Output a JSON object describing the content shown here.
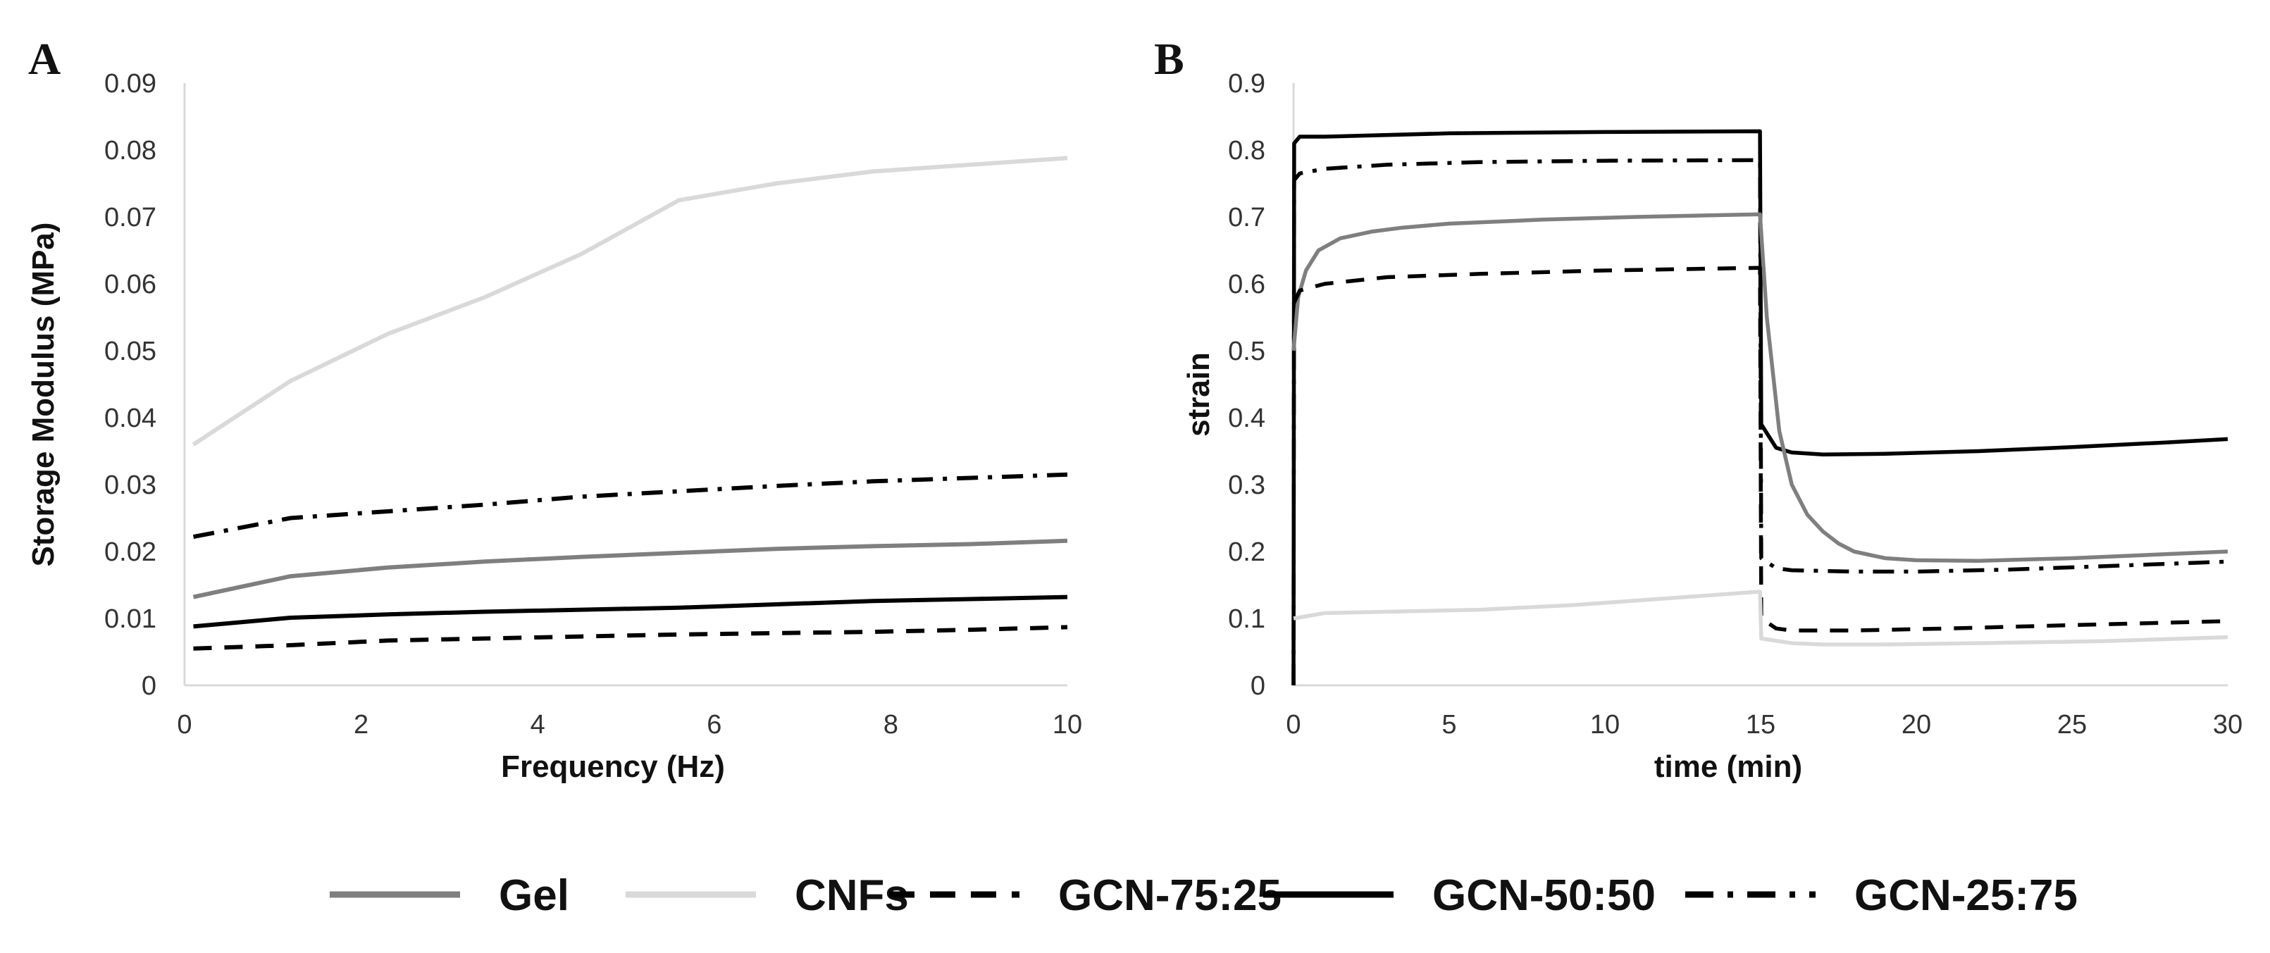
{
  "chart_data": [
    {
      "panel": "A",
      "type": "line",
      "title": "",
      "xlabel": "Frequency (Hz)",
      "ylabel": "Storage Modulus (MPa)",
      "xlim": [
        0,
        10
      ],
      "ylim": [
        0,
        0.09
      ],
      "xticks": [
        "0",
        "2",
        "4",
        "6",
        "8",
        "10"
      ],
      "yticks": [
        "0",
        "0.01",
        "0.02",
        "0.03",
        "0.04",
        "0.05",
        "0.06",
        "0.07",
        "0.08",
        "0.09"
      ],
      "grid": false,
      "series": [
        {
          "name": "CNFs",
          "color": "#d9d9d9",
          "dash": "solid",
          "points": [
            [
              0.1,
              0.036
            ],
            [
              1.2,
              0.0455
            ],
            [
              2.3,
              0.0525
            ],
            [
              3.4,
              0.058
            ],
            [
              4.5,
              0.0645
            ],
            [
              5.6,
              0.0725
            ],
            [
              6.7,
              0.075
            ],
            [
              7.8,
              0.0768
            ],
            [
              8.9,
              0.0778
            ],
            [
              10,
              0.0788
            ]
          ]
        },
        {
          "name": "GCN-25:75",
          "color": "#000000",
          "dash": "dashdot",
          "points": [
            [
              0.1,
              0.0222
            ],
            [
              1.2,
              0.025
            ],
            [
              2.3,
              0.026
            ],
            [
              3.4,
              0.027
            ],
            [
              4.5,
              0.0282
            ],
            [
              5.6,
              0.029
            ],
            [
              6.7,
              0.0298
            ],
            [
              7.8,
              0.0305
            ],
            [
              8.9,
              0.031
            ],
            [
              10,
              0.0315
            ]
          ]
        },
        {
          "name": "Gel",
          "color": "#7f7f7f",
          "dash": "solid",
          "points": [
            [
              0.1,
              0.0132
            ],
            [
              1.2,
              0.0163
            ],
            [
              2.3,
              0.0176
            ],
            [
              3.4,
              0.0185
            ],
            [
              4.5,
              0.0192
            ],
            [
              5.6,
              0.0198
            ],
            [
              6.7,
              0.0204
            ],
            [
              7.8,
              0.0208
            ],
            [
              8.9,
              0.0211
            ],
            [
              10,
              0.0216
            ]
          ]
        },
        {
          "name": "GCN-50:50",
          "color": "#000000",
          "dash": "solid",
          "points": [
            [
              0.1,
              0.0088
            ],
            [
              1.2,
              0.0101
            ],
            [
              2.3,
              0.0106
            ],
            [
              3.4,
              0.011
            ],
            [
              4.5,
              0.0113
            ],
            [
              5.6,
              0.0116
            ],
            [
              6.7,
              0.0121
            ],
            [
              7.8,
              0.0126
            ],
            [
              8.9,
              0.0129
            ],
            [
              10,
              0.0132
            ]
          ]
        },
        {
          "name": "GCN-75:25",
          "color": "#000000",
          "dash": "dash",
          "points": [
            [
              0.1,
              0.0055
            ],
            [
              1.2,
              0.006
            ],
            [
              2.3,
              0.0067
            ],
            [
              3.4,
              0.007
            ],
            [
              4.5,
              0.0073
            ],
            [
              5.6,
              0.0076
            ],
            [
              6.7,
              0.0078
            ],
            [
              7.8,
              0.008
            ],
            [
              8.9,
              0.0083
            ],
            [
              10,
              0.0087
            ]
          ]
        }
      ]
    },
    {
      "panel": "B",
      "type": "line",
      "title": "",
      "xlabel": "time (min)",
      "ylabel": "strain",
      "xlim": [
        0,
        30
      ],
      "ylim": [
        0,
        0.9
      ],
      "xticks": [
        "0",
        "5",
        "10",
        "15",
        "20",
        "25",
        "30"
      ],
      "yticks": [
        "0",
        "0.1",
        "0.2",
        "0.3",
        "0.4",
        "0.5",
        "0.6",
        "0.7",
        "0.8",
        "0.9"
      ],
      "grid": false,
      "series": [
        {
          "name": "GCN-50:50",
          "color": "#000000",
          "dash": "solid",
          "points": [
            [
              0,
              0
            ],
            [
              0.02,
              0.81
            ],
            [
              0.2,
              0.82
            ],
            [
              1,
              0.82
            ],
            [
              5,
              0.825
            ],
            [
              10,
              0.827
            ],
            [
              14.98,
              0.828
            ],
            [
              15.02,
              0.39
            ],
            [
              15.5,
              0.355
            ],
            [
              16,
              0.348
            ],
            [
              17,
              0.345
            ],
            [
              19,
              0.346
            ],
            [
              22,
              0.35
            ],
            [
              25,
              0.356
            ],
            [
              28,
              0.363
            ],
            [
              30,
              0.368
            ]
          ]
        },
        {
          "name": "GCN-25:75",
          "color": "#000000",
          "dash": "dashdot",
          "points": [
            [
              0,
              0
            ],
            [
              0.02,
              0.755
            ],
            [
              0.2,
              0.765
            ],
            [
              1,
              0.772
            ],
            [
              3,
              0.778
            ],
            [
              6,
              0.782
            ],
            [
              10,
              0.784
            ],
            [
              14.98,
              0.785
            ],
            [
              15.02,
              0.19
            ],
            [
              15.5,
              0.175
            ],
            [
              16,
              0.172
            ],
            [
              18,
              0.17
            ],
            [
              20,
              0.17
            ],
            [
              23,
              0.173
            ],
            [
              26,
              0.178
            ],
            [
              30,
              0.185
            ]
          ]
        },
        {
          "name": "Gel",
          "color": "#7f7f7f",
          "dash": "solid",
          "points": [
            [
              0,
              0.5
            ],
            [
              0.15,
              0.58
            ],
            [
              0.4,
              0.62
            ],
            [
              0.8,
              0.65
            ],
            [
              1.5,
              0.668
            ],
            [
              2.5,
              0.678
            ],
            [
              3.5,
              0.684
            ],
            [
              5,
              0.69
            ],
            [
              8,
              0.696
            ],
            [
              11,
              0.7
            ],
            [
              14,
              0.703
            ],
            [
              14.98,
              0.704
            ],
            [
              15.2,
              0.55
            ],
            [
              15.6,
              0.38
            ],
            [
              16,
              0.3
            ],
            [
              16.5,
              0.255
            ],
            [
              17,
              0.23
            ],
            [
              17.5,
              0.212
            ],
            [
              18,
              0.2
            ],
            [
              19,
              0.19
            ],
            [
              20,
              0.187
            ],
            [
              22,
              0.186
            ],
            [
              25,
              0.19
            ],
            [
              28,
              0.196
            ],
            [
              30,
              0.2
            ]
          ]
        },
        {
          "name": "GCN-75:25",
          "color": "#000000",
          "dash": "dash",
          "points": [
            [
              0,
              0.57
            ],
            [
              0.2,
              0.59
            ],
            [
              1,
              0.6
            ],
            [
              3,
              0.61
            ],
            [
              6,
              0.615
            ],
            [
              10,
              0.62
            ],
            [
              14.98,
              0.624
            ],
            [
              15.02,
              0.1
            ],
            [
              15.5,
              0.085
            ],
            [
              16,
              0.082
            ],
            [
              18,
              0.082
            ],
            [
              21,
              0.085
            ],
            [
              25,
              0.09
            ],
            [
              30,
              0.096
            ]
          ]
        },
        {
          "name": "CNFs",
          "color": "#d9d9d9",
          "dash": "solid",
          "points": [
            [
              0,
              0.1
            ],
            [
              1,
              0.108
            ],
            [
              3,
              0.11
            ],
            [
              6,
              0.113
            ],
            [
              9,
              0.12
            ],
            [
              12,
              0.13
            ],
            [
              14.98,
              0.14
            ],
            [
              15.02,
              0.07
            ],
            [
              16,
              0.063
            ],
            [
              17,
              0.061
            ],
            [
              19,
              0.061
            ],
            [
              22,
              0.063
            ],
            [
              26,
              0.066
            ],
            [
              30,
              0.072
            ]
          ]
        }
      ]
    }
  ],
  "legend": [
    {
      "label": "Gel",
      "color": "#7f7f7f",
      "dash": "solid"
    },
    {
      "label": "CNFs",
      "color": "#d9d9d9",
      "dash": "solid"
    },
    {
      "label": "GCN-75:25",
      "color": "#000000",
      "dash": "dash"
    },
    {
      "label": "GCN-50:50",
      "color": "#000000",
      "dash": "solid"
    },
    {
      "label": "GCN-25:75",
      "color": "#000000",
      "dash": "dashdot"
    }
  ]
}
